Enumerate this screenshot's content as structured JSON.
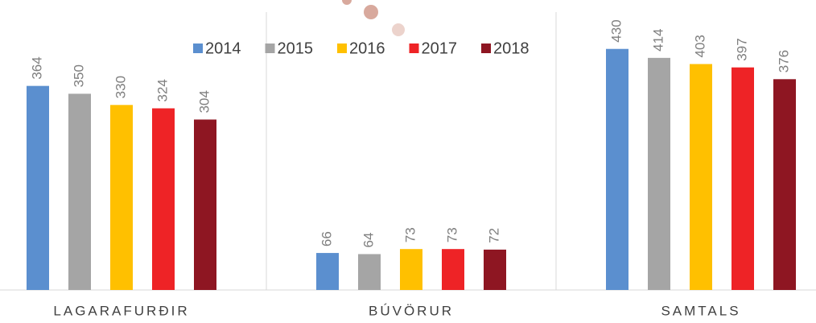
{
  "chart_data": {
    "type": "bar",
    "categories": [
      "LAGARAFURÐIR",
      "BÚVÖRUR",
      "SAMTALS"
    ],
    "series": [
      {
        "name": "2014",
        "color": "#5b8fcf",
        "values": [
          364,
          66,
          430
        ]
      },
      {
        "name": "2015",
        "color": "#a5a5a5",
        "values": [
          350,
          64,
          414
        ]
      },
      {
        "name": "2016",
        "color": "#ffc000",
        "values": [
          330,
          73,
          403
        ]
      },
      {
        "name": "2017",
        "color": "#ee2326",
        "values": [
          324,
          73,
          397
        ]
      },
      {
        "name": "2018",
        "color": "#8e1622",
        "values": [
          304,
          72,
          376
        ]
      }
    ],
    "ylim": [
      0,
      500
    ],
    "legend": "top"
  }
}
